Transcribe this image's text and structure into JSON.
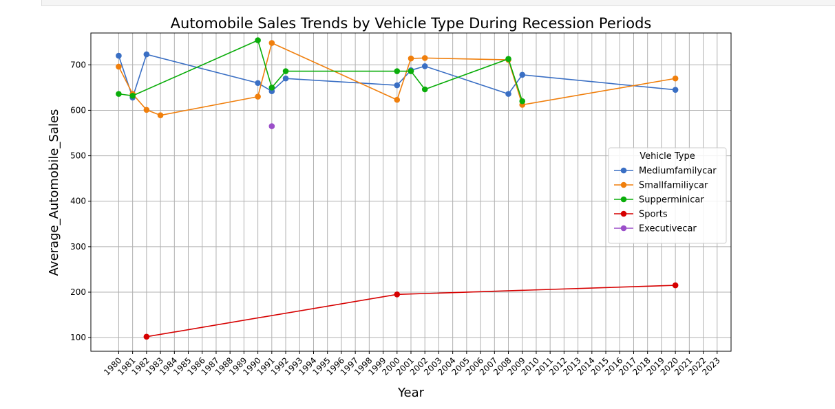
{
  "chart_data": {
    "type": "line",
    "title": "Automobile Sales Trends by Vehicle Type During Recession Periods",
    "xlabel": "Year",
    "ylabel": "Average_Automobile_Sales",
    "xlim": [
      1978,
      2024
    ],
    "ylim": [
      70,
      770
    ],
    "x_ticks": [
      1980,
      1981,
      1982,
      1983,
      1984,
      1985,
      1986,
      1987,
      1988,
      1989,
      1990,
      1991,
      1992,
      1993,
      1994,
      1995,
      1996,
      1997,
      1998,
      1999,
      2000,
      2001,
      2002,
      2003,
      2004,
      2005,
      2006,
      2007,
      2008,
      2009,
      2010,
      2011,
      2012,
      2013,
      2014,
      2015,
      2016,
      2017,
      2018,
      2019,
      2020,
      2021,
      2022,
      2023
    ],
    "y_ticks": [
      100,
      200,
      300,
      400,
      500,
      600,
      700
    ],
    "grid": true,
    "legend_title": "Vehicle Type",
    "legend_position": "center-right",
    "series": [
      {
        "name": "Mediumfamilycar",
        "color": "#3a6fc4",
        "x": [
          1980,
          1981,
          1982,
          1990,
          1991,
          1992,
          2000,
          2001,
          2002,
          2008,
          2009,
          2020
        ],
        "y": [
          720,
          628,
          723,
          660,
          642,
          670,
          655,
          688,
          697,
          636,
          678,
          645
        ]
      },
      {
        "name": "Smallfamiliycar",
        "color": "#f07f0c",
        "x": [
          1980,
          1981,
          1982,
          1983,
          1990,
          1991,
          2000,
          2001,
          2002,
          2008,
          2009,
          2020
        ],
        "y": [
          696,
          636,
          601,
          589,
          630,
          748,
          623,
          714,
          715,
          711,
          612,
          670
        ]
      },
      {
        "name": "Supperminicar",
        "color": "#0aad0a",
        "x": [
          1980,
          1981,
          1990,
          1991,
          1992,
          2000,
          2001,
          2002,
          2008,
          2009
        ],
        "y": [
          636,
          632,
          754,
          650,
          686,
          686,
          686,
          646,
          713,
          620
        ]
      },
      {
        "name": "Sports",
        "color": "#d60000",
        "x": [
          1982,
          2000,
          2020
        ],
        "y": [
          102,
          195,
          215
        ]
      },
      {
        "name": "Executivecar",
        "color": "#9b4fc9",
        "x": [
          1991
        ],
        "y": [
          565
        ]
      }
    ]
  }
}
